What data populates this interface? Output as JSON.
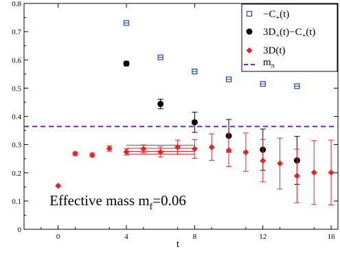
{
  "chart_data": {
    "type": "scatter",
    "xlabel": "t",
    "ylabel": "",
    "xlim": [
      -2,
      16.4
    ],
    "ylim": [
      0,
      0.8
    ],
    "x_ticks": [
      0,
      4,
      8,
      12,
      16
    ],
    "y_ticks": [
      0,
      0.1,
      0.2,
      0.3,
      0.4,
      0.5,
      0.6,
      0.7,
      0.8
    ],
    "y_tick_labels": [
      "0",
      "0.1",
      "0.2",
      "0.3",
      "0.4",
      "0.5",
      "0.6",
      "0.7",
      "0.8"
    ],
    "legend_position": "top-right",
    "series": [
      {
        "name": "−C+(t)",
        "legend_main": "−C",
        "legend_sub": "+",
        "legend_tail": "(t)",
        "marker": "open-square",
        "color": "#1f3fd6",
        "points": [
          {
            "x": 4,
            "y": 0.731,
            "err": 0.004
          },
          {
            "x": 6,
            "y": 0.609,
            "err": 0.004
          },
          {
            "x": 8,
            "y": 0.559,
            "err": 0.004
          },
          {
            "x": 10,
            "y": 0.531,
            "err": 0.004
          },
          {
            "x": 12,
            "y": 0.515,
            "err": 0.004
          },
          {
            "x": 14,
            "y": 0.507,
            "err": 0.004
          }
        ]
      },
      {
        "name": "3D+(t)−C+(t)",
        "legend_parts": [
          "3D",
          "+",
          "(t)−C",
          "+",
          "(t)"
        ],
        "marker": "filled-circle",
        "color": "#000000",
        "points": [
          {
            "x": 4,
            "y": 0.587,
            "err": 0.008
          },
          {
            "x": 6,
            "y": 0.444,
            "err": 0.017
          },
          {
            "x": 8,
            "y": 0.379,
            "err": 0.036
          },
          {
            "x": 10,
            "y": 0.331,
            "err": 0.058
          },
          {
            "x": 12,
            "y": 0.282,
            "err": 0.073
          },
          {
            "x": 14,
            "y": 0.244,
            "err": 0.085
          }
        ]
      },
      {
        "name": "3D(t)",
        "legend_main": "3D(t)",
        "marker": "filled-diamond",
        "color": "#e8202a",
        "points": [
          {
            "x": 0,
            "y": 0.154,
            "err": 0.003
          },
          {
            "x": 1,
            "y": 0.268,
            "err": 0.006
          },
          {
            "x": 2,
            "y": 0.263,
            "err": 0.007
          },
          {
            "x": 3,
            "y": 0.286,
            "err": 0.009
          },
          {
            "x": 4,
            "y": 0.274,
            "err": 0.011
          },
          {
            "x": 5,
            "y": 0.285,
            "err": 0.014
          },
          {
            "x": 6,
            "y": 0.274,
            "err": 0.018
          },
          {
            "x": 7,
            "y": 0.291,
            "err": 0.025
          },
          {
            "x": 8,
            "y": 0.285,
            "err": 0.033
          },
          {
            "x": 9,
            "y": 0.291,
            "err": 0.047
          },
          {
            "x": 10,
            "y": 0.28,
            "err": 0.058
          },
          {
            "x": 11,
            "y": 0.273,
            "err": 0.068
          },
          {
            "x": 12,
            "y": 0.243,
            "err": 0.075
          },
          {
            "x": 13,
            "y": 0.233,
            "err": 0.09
          },
          {
            "x": 14,
            "y": 0.189,
            "err": 0.095
          },
          {
            "x": 15,
            "y": 0.201,
            "err": 0.113
          },
          {
            "x": 16,
            "y": 0.201,
            "err": 0.115
          }
        ]
      }
    ],
    "fit_bands": [
      {
        "x_start": 4,
        "x_end": 8,
        "values": [
          0.298,
          0.287,
          0.276,
          0.266
        ],
        "color": "#e8202a"
      }
    ],
    "reference_line": {
      "name": "mπ",
      "legend_main": "m",
      "legend_sub": "π",
      "y": 0.364,
      "style": "dashed",
      "color": "#7a1fd6"
    },
    "annotation": {
      "main": "Effective mass m",
      "sub": "f",
      "tail": "=0.06",
      "x": -0.5,
      "y": 0.085
    }
  }
}
